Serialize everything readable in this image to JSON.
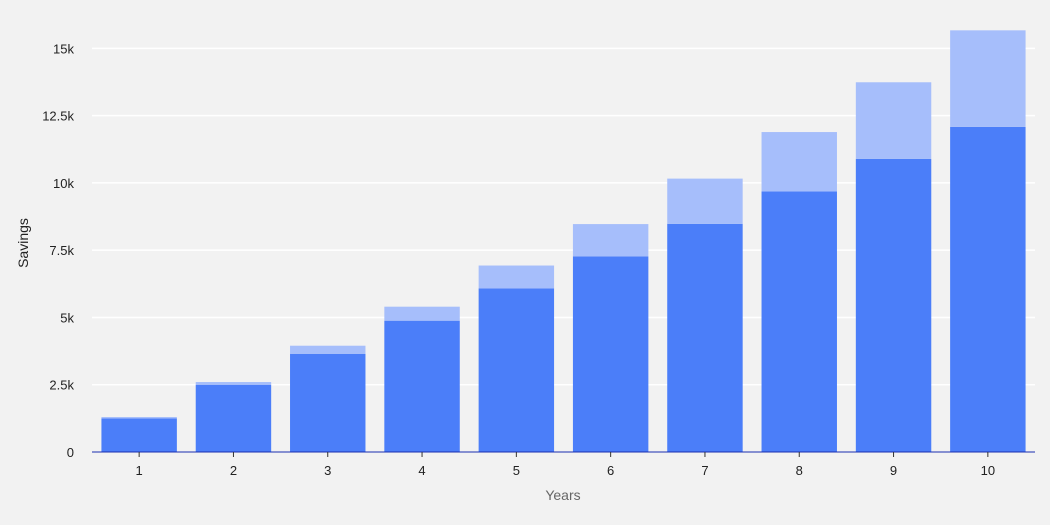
{
  "chart_data": {
    "type": "bar",
    "stacked": true,
    "categories": [
      "1",
      "2",
      "3",
      "4",
      "5",
      "6",
      "7",
      "8",
      "9",
      "10"
    ],
    "series": [
      {
        "values": [
          1250,
          2500,
          3650,
          4880,
          6080,
          7270,
          8480,
          9680,
          10890,
          12080
        ]
      },
      {
        "values": [
          50,
          100,
          300,
          520,
          850,
          1200,
          1680,
          2210,
          2850,
          3590
        ]
      }
    ],
    "xlabel": "Years",
    "ylabel": "Savings",
    "ylim": [
      0,
      16500
    ],
    "yticks": [
      0,
      2500,
      5000,
      7500,
      10000,
      12500,
      15000
    ],
    "ytick_labels": [
      "0",
      "2.5k",
      "5k",
      "7.5k",
      "10k",
      "12.5k",
      "15k"
    ],
    "grid": true,
    "colors": {
      "series": [
        "#4b7ef9",
        "#a6befb"
      ],
      "baseline": "#1a2fb0",
      "grid": "#ffffff",
      "xlabel": "#666666",
      "ylabel": "#222222",
      "background": "#f2f2f2"
    }
  }
}
